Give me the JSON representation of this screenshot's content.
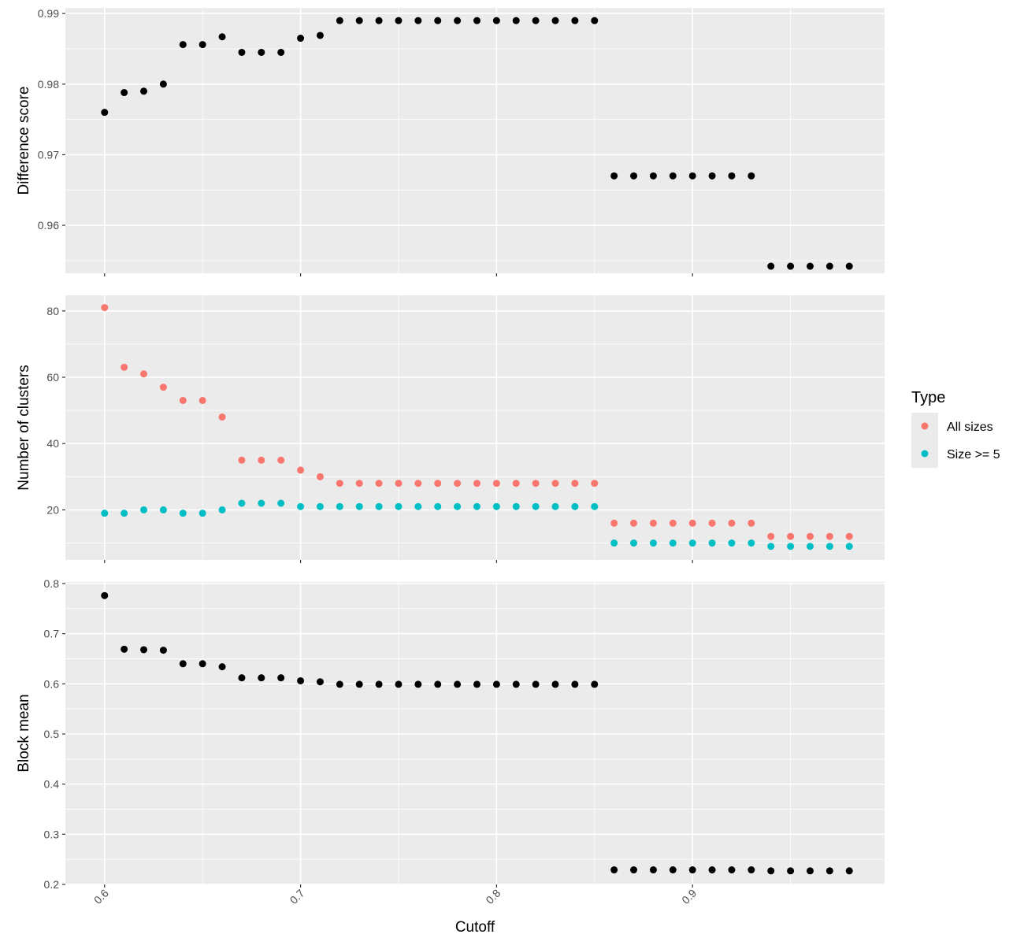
{
  "chart_data": {
    "type": "scatter",
    "xlabel": "Cutoff",
    "x_range": [
      0.58,
      0.998
    ],
    "x_ticks": [
      "0.6",
      "0.7",
      "0.8",
      "0.9"
    ],
    "x": [
      0.6,
      0.61,
      0.62,
      0.63,
      0.64,
      0.65,
      0.66,
      0.67,
      0.68,
      0.69,
      0.7,
      0.71,
      0.72,
      0.73,
      0.74,
      0.75,
      0.76,
      0.77,
      0.78,
      0.79,
      0.8,
      0.81,
      0.82,
      0.83,
      0.84,
      0.85,
      0.86,
      0.87,
      0.88,
      0.89,
      0.9,
      0.91,
      0.92,
      0.93,
      0.94,
      0.95,
      0.96,
      0.97,
      0.98
    ],
    "legend": {
      "title": "Type",
      "position": "right",
      "items": [
        {
          "label": "All sizes",
          "color": "#F8766D"
        },
        {
          "label": "Size >= 5",
          "color": "#00BFC4"
        }
      ]
    },
    "panels": [
      {
        "ylabel": "Difference score",
        "ylim": [
          0.9532,
          0.9908
        ],
        "y_ticks": [
          "0.96",
          "0.97",
          "0.98",
          "0.99"
        ],
        "series": [
          {
            "color": "#000000",
            "values": [
              0.976,
              0.9788,
              0.979,
              0.98,
              0.9856,
              0.9856,
              0.9867,
              0.9845,
              0.9845,
              0.9845,
              0.9865,
              0.9869,
              0.989,
              0.989,
              0.989,
              0.989,
              0.989,
              0.989,
              0.989,
              0.989,
              0.989,
              0.989,
              0.989,
              0.989,
              0.989,
              0.989,
              0.967,
              0.967,
              0.967,
              0.967,
              0.967,
              0.967,
              0.967,
              0.967,
              0.9542,
              0.9542,
              0.9542,
              0.9542,
              0.9542
            ]
          }
        ]
      },
      {
        "ylabel": "Number of clusters",
        "ylim": [
          4.9,
          84.7
        ],
        "y_ticks": [
          "20",
          "40",
          "60",
          "80"
        ],
        "series": [
          {
            "name": "All sizes",
            "color": "#F8766D",
            "values": [
              81,
              63,
              61,
              57,
              53,
              53,
              48,
              35,
              35,
              35,
              32,
              30,
              28,
              28,
              28,
              28,
              28,
              28,
              28,
              28,
              28,
              28,
              28,
              28,
              28,
              28,
              16,
              16,
              16,
              16,
              16,
              16,
              16,
              16,
              12,
              12,
              12,
              12,
              12
            ]
          },
          {
            "name": "Size >= 5",
            "color": "#00BFC4",
            "values": [
              19,
              19,
              20,
              20,
              19,
              19,
              20,
              22,
              22,
              22,
              21,
              21,
              21,
              21,
              21,
              21,
              21,
              21,
              21,
              21,
              21,
              21,
              21,
              21,
              21,
              21,
              10,
              10,
              10,
              10,
              10,
              10,
              10,
              10,
              9,
              9,
              9,
              9,
              9
            ]
          }
        ]
      },
      {
        "ylabel": "Block mean",
        "ylim": [
          0.2,
          0.803
        ],
        "y_ticks": [
          "0.2",
          "0.3",
          "0.4",
          "0.5",
          "0.6",
          "0.7",
          "0.8"
        ],
        "series": [
          {
            "color": "#000000",
            "values": [
              0.776,
              0.669,
              0.668,
              0.667,
              0.64,
              0.64,
              0.634,
              0.612,
              0.612,
              0.612,
              0.606,
              0.604,
              0.599,
              0.599,
              0.599,
              0.599,
              0.599,
              0.599,
              0.599,
              0.599,
              0.599,
              0.599,
              0.599,
              0.599,
              0.599,
              0.599,
              0.229,
              0.229,
              0.229,
              0.229,
              0.229,
              0.229,
              0.229,
              0.229,
              0.227,
              0.227,
              0.227,
              0.227,
              0.227
            ]
          }
        ]
      }
    ]
  }
}
